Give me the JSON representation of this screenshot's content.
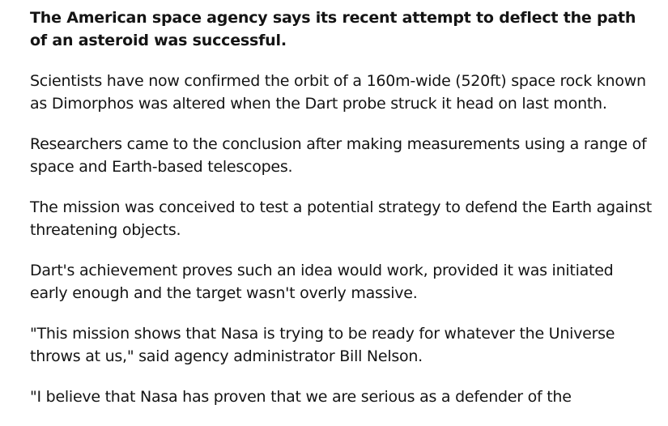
{
  "article": {
    "lead": "The American space agency says its recent attempt to deflect the path of an asteroid was successful.",
    "paragraphs": [
      "Scientists have now confirmed the orbit of a 160m-wide (520ft) space rock known as Dimorphos was altered when the Dart probe struck it head on last month.",
      "Researchers came to the conclusion after making measurements using a range of space and Earth-based telescopes.",
      "The mission was conceived to test a potential strategy to defend the Earth against threatening objects.",
      "Dart's achievement proves such an idea would work, provided it was initiated early enough and the target wasn't overly massive.",
      "\"This mission shows that Nasa is trying to be ready for whatever the Universe throws at us,\" said agency administrator Bill Nelson.",
      "\"I believe that Nasa has proven that we are serious as a defender of the"
    ]
  }
}
